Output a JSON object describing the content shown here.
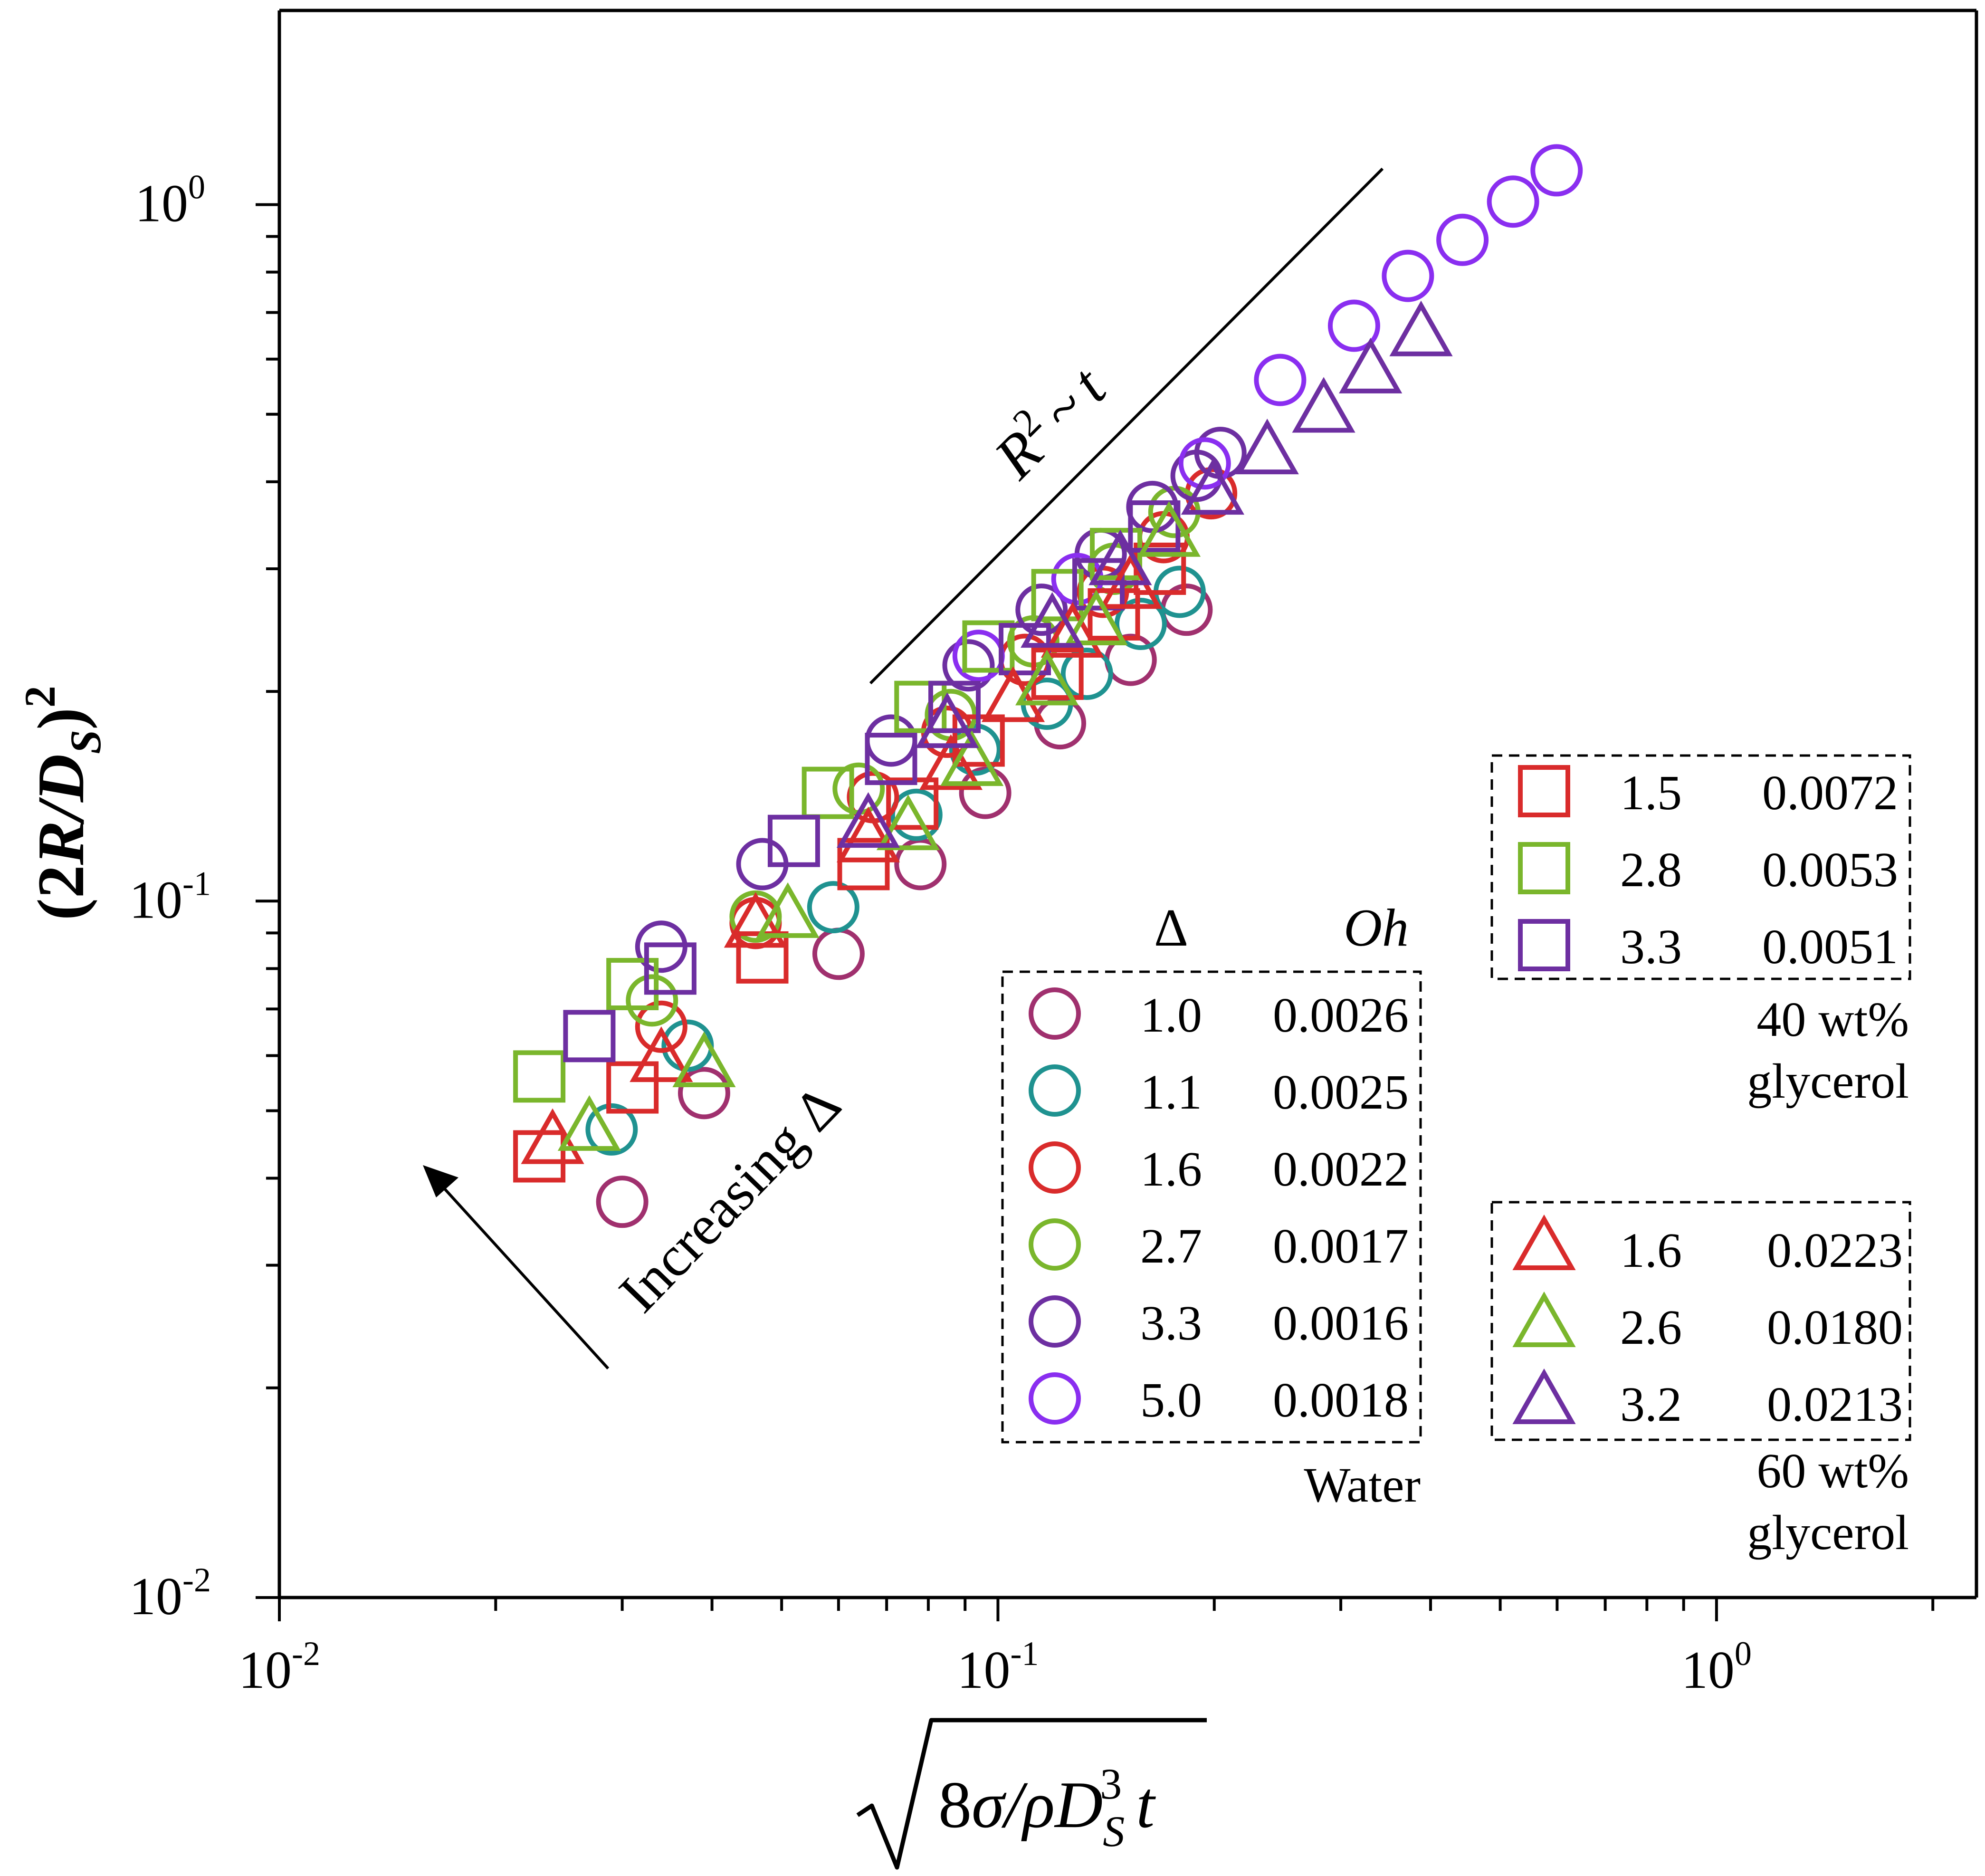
{
  "chart_data": {
    "type": "scatter",
    "xscale": "log",
    "yscale": "log",
    "xlim": [
      0.01,
      2.3
    ],
    "ylim": [
      0.01,
      1.9
    ],
    "xlabel": "√(8σ/ρD_S^3) t",
    "ylabel": "(2R/D_S)^2",
    "x_ticks": [
      {
        "base": "10",
        "exp": "-2"
      },
      {
        "base": "10",
        "exp": "-1"
      },
      {
        "base": "10",
        "exp": "0"
      }
    ],
    "y_ticks": [
      {
        "base": "10",
        "exp": "-2"
      },
      {
        "base": "10",
        "exp": "-1"
      },
      {
        "base": "10",
        "exp": "0"
      }
    ],
    "legend_header": {
      "delta": "Δ",
      "oh": "Oh"
    },
    "groups": [
      {
        "name": "Water",
        "label_lines": [
          "Water"
        ],
        "marker": "circle"
      },
      {
        "name": "40 wt% glycerol",
        "label_lines": [
          "40 wt%",
          "glycerol"
        ],
        "marker": "square"
      },
      {
        "name": "60 wt% glycerol",
        "label_lines": [
          "60 wt%",
          "glycerol"
        ],
        "marker": "triangle"
      }
    ],
    "series": [
      {
        "group": "Water",
        "marker": "circle",
        "color": "#a0306e",
        "delta": "1.0",
        "oh": "0.0026",
        "x": [
          0.03,
          0.039,
          0.06,
          0.078,
          0.096,
          0.122,
          0.153,
          0.183
        ],
        "y": [
          0.037,
          0.053,
          0.084,
          0.113,
          0.143,
          0.18,
          0.222,
          0.262
        ]
      },
      {
        "group": "Water",
        "marker": "circle",
        "color": "#1f9290",
        "delta": "1.1",
        "oh": "0.0025",
        "x": [
          0.029,
          0.037,
          0.059,
          0.077,
          0.093,
          0.117,
          0.133,
          0.158,
          0.179
        ],
        "y": [
          0.047,
          0.062,
          0.098,
          0.133,
          0.165,
          0.192,
          0.212,
          0.25,
          0.278
        ]
      },
      {
        "group": "Water",
        "marker": "circle",
        "color": "#d92b2b",
        "delta": "1.6",
        "oh": "0.0022",
        "x": [
          0.034,
          0.046,
          0.067,
          0.085,
          0.109,
          0.14,
          0.17,
          0.198
        ],
        "y": [
          0.066,
          0.093,
          0.141,
          0.175,
          0.222,
          0.278,
          0.333,
          0.385
        ]
      },
      {
        "group": "Water",
        "marker": "circle",
        "color": "#7ab62c",
        "delta": "2.7",
        "oh": "0.0017",
        "x": [
          0.033,
          0.046,
          0.064,
          0.086,
          0.112,
          0.145,
          0.176
        ],
        "y": [
          0.072,
          0.095,
          0.145,
          0.185,
          0.236,
          0.3,
          0.362
        ]
      },
      {
        "group": "Water",
        "marker": "circle",
        "color": "#6d2fa1",
        "delta": "3.3",
        "oh": "0.0016",
        "x": [
          0.034,
          0.047,
          0.071,
          0.091,
          0.115,
          0.139,
          0.164,
          0.189,
          0.204
        ],
        "y": [
          0.086,
          0.113,
          0.17,
          0.218,
          0.262,
          0.315,
          0.368,
          0.408,
          0.44
        ]
      },
      {
        "group": "Water",
        "marker": "circle",
        "color": "#8a2ef0",
        "delta": "5.0",
        "oh": "0.0018",
        "x": [
          0.094,
          0.129,
          0.194,
          0.247,
          0.313,
          0.372,
          0.443,
          0.521,
          0.599
        ],
        "y": [
          0.225,
          0.29,
          0.425,
          0.56,
          0.67,
          0.79,
          0.89,
          1.01,
          1.12
        ]
      },
      {
        "group": "40 wt% glycerol",
        "marker": "square",
        "color": "#d92b2b",
        "delta": "1.5",
        "oh": "0.0072",
        "x": [
          0.023,
          0.031,
          0.047,
          0.065,
          0.076,
          0.094,
          0.121,
          0.145,
          0.168
        ],
        "y": [
          0.043,
          0.054,
          0.083,
          0.113,
          0.138,
          0.17,
          0.212,
          0.258,
          0.3
        ]
      },
      {
        "group": "40 wt% glycerol",
        "marker": "square",
        "color": "#7ab62c",
        "delta": "2.8",
        "oh": "0.0053",
        "x": [
          0.023,
          0.031,
          0.058,
          0.078,
          0.097,
          0.121,
          0.146
        ],
        "y": [
          0.056,
          0.076,
          0.143,
          0.19,
          0.232,
          0.275,
          0.315
        ]
      },
      {
        "group": "40 wt% glycerol",
        "marker": "square",
        "color": "#6d2fa1",
        "delta": "3.3",
        "oh": "0.0051",
        "x": [
          0.027,
          0.035,
          0.052,
          0.071,
          0.087,
          0.109,
          0.138,
          0.165
        ],
        "y": [
          0.064,
          0.08,
          0.122,
          0.16,
          0.19,
          0.23,
          0.285,
          0.345
        ]
      },
      {
        "group": "60 wt% glycerol",
        "marker": "triangle",
        "color": "#d92b2b",
        "delta": "1.6",
        "oh": "0.0223",
        "x": [
          0.024,
          0.034,
          0.046,
          0.066,
          0.086,
          0.105,
          0.127,
          0.153
        ],
        "y": [
          0.045,
          0.059,
          0.092,
          0.122,
          0.155,
          0.194,
          0.24,
          0.282
        ]
      },
      {
        "group": "60 wt% glycerol",
        "marker": "triangle",
        "color": "#7ab62c",
        "delta": "2.6",
        "oh": "0.0180",
        "x": [
          0.027,
          0.039,
          0.051,
          0.075,
          0.092,
          0.117,
          0.137,
          0.173
        ],
        "y": [
          0.047,
          0.058,
          0.095,
          0.127,
          0.157,
          0.205,
          0.25,
          0.335
        ]
      },
      {
        "group": "60 wt% glycerol",
        "marker": "triangle",
        "color": "#6d2fa1",
        "delta": "3.2",
        "oh": "0.0213",
        "x": [
          0.066,
          0.085,
          0.119,
          0.148,
          0.199,
          0.237,
          0.284,
          0.33,
          0.388
        ],
        "y": [
          0.128,
          0.178,
          0.248,
          0.305,
          0.385,
          0.44,
          0.505,
          0.575,
          0.65
        ]
      }
    ],
    "annotations": {
      "slope_label": "R² ~ t",
      "trend_label": "Increasing Δ"
    }
  }
}
